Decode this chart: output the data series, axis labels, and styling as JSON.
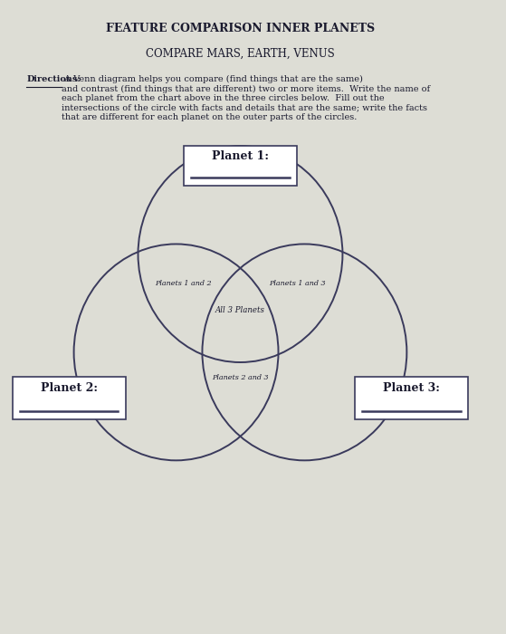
{
  "title": "FEATURE COMPARISON INNER PLANETS",
  "subtitle": "COMPARE MARS, EARTH, VENUS",
  "directions_label": "Directions:",
  "directions_text": " A Venn diagram helps you compare (find things that are the same)\nand contrast (find things that are different) two or more items.  Write the name of\neach planet from the chart above in the three circles below.  Fill out the\nintersections of the circle with facts and details that are the same; write the facts\nthat are different for each planet on the outer parts of the circles.",
  "planet1_label": "Planet 1:",
  "planet2_label": "Planet 2:",
  "planet3_label": "Planet 3:",
  "label_12": "Planets 1 and 2",
  "label_13": "Planets 1 and 3",
  "label_23": "Planets 2 and 3",
  "label_all": "All 3 Planets",
  "circle_color": "#3a3a5c",
  "bg_color": "#ddddd5",
  "text_color": "#1a1a2e",
  "box_line_color": "#3a3a5c"
}
